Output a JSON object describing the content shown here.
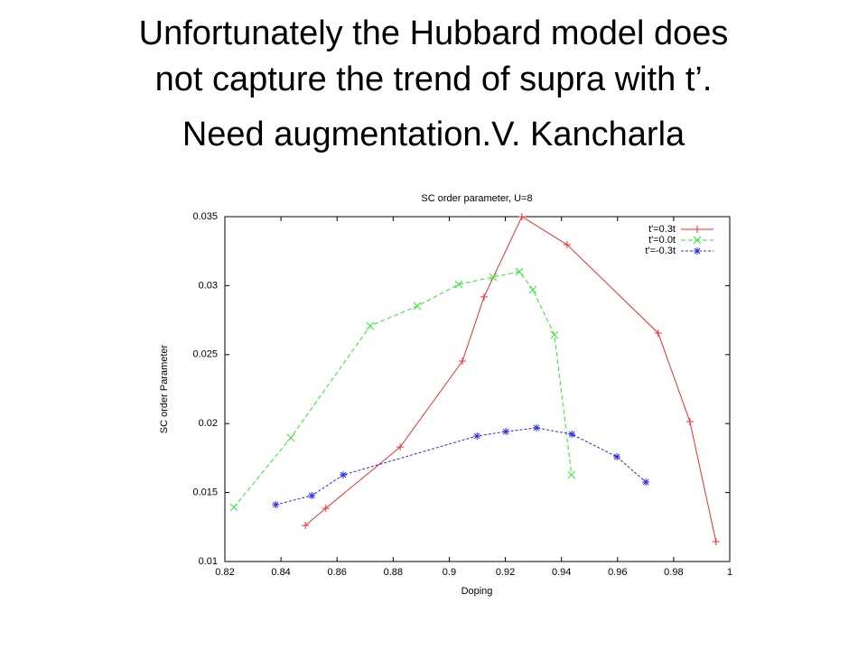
{
  "heading": [
    "Unfortunately the Hubbard model does",
    "not capture the trend of supra with t’.",
    "Need augmentation.V. Kancharla"
  ],
  "chart_data": {
    "type": "line",
    "title": "SC order parameter, U=8",
    "xlabel": "Doping",
    "ylabel": "SC order Parameter",
    "xlim": [
      0.82,
      1
    ],
    "xticks": [
      0.82,
      0.84,
      0.86,
      0.88,
      0.9,
      0.92,
      0.94,
      0.96,
      0.98,
      1
    ],
    "ylim": [
      0.01,
      0.035
    ],
    "yticks": [
      0.01,
      0.015,
      0.02,
      0.025,
      0.03,
      0.035
    ],
    "legend": "upper right",
    "series": [
      {
        "name": "t'=0.3t",
        "color": "#e8312f",
        "marker": "+",
        "dash": "solid",
        "x": [
          0.8487,
          0.856,
          0.8825,
          0.9047,
          0.9124,
          0.9259,
          0.942,
          0.9745,
          0.9858,
          0.9951
        ],
        "values": [
          0.01262,
          0.01386,
          0.0183,
          0.02453,
          0.02918,
          0.035,
          0.03297,
          0.02656,
          0.02014,
          0.01144
        ]
      },
      {
        "name": "t'=0.0t",
        "color": "#2ee82e",
        "marker": "x",
        "dash": "dashed",
        "x": [
          0.8232,
          0.8435,
          0.8718,
          0.8886,
          0.9034,
          0.9156,
          0.925,
          0.9298,
          0.9375,
          0.9436
        ],
        "values": [
          0.01393,
          0.01897,
          0.02708,
          0.02852,
          0.03009,
          0.03062,
          0.03101,
          0.0297,
          0.02643,
          0.01628
        ]
      },
      {
        "name": "t'=-0.3t",
        "color": "#2a2ae8",
        "marker": "*",
        "dash": "dotted",
        "x": [
          0.8381,
          0.851,
          0.8622,
          0.9099,
          0.9202,
          0.9311,
          0.9437,
          0.9598,
          0.9701
        ],
        "values": [
          0.01412,
          0.01478,
          0.01628,
          0.0191,
          0.01942,
          0.01969,
          0.01923,
          0.01759,
          0.01576
        ]
      }
    ]
  }
}
